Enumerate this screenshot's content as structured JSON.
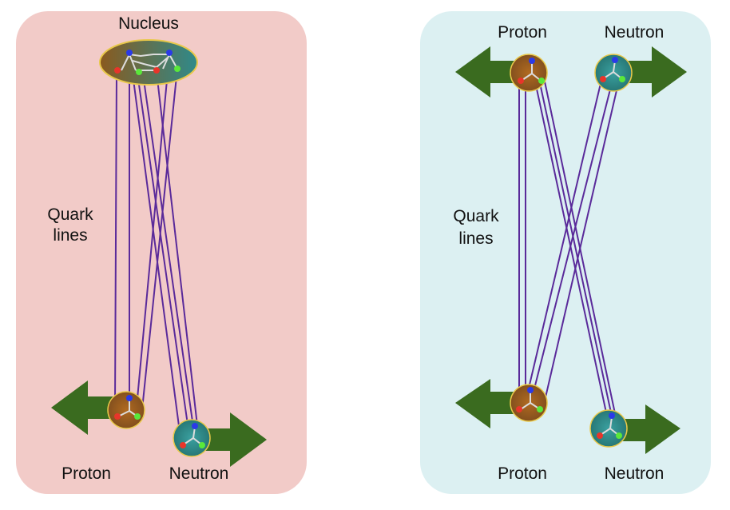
{
  "panels": {
    "left": {
      "background": "#f2cbc8",
      "labels": {
        "nucleus": "Nucleus",
        "quark_lines_1": "Quark",
        "quark_lines_2": "lines",
        "proton": "Proton",
        "neutron": "Neutron"
      }
    },
    "right": {
      "background": "#dcf0f2",
      "labels": {
        "proton_top": "Proton",
        "neutron_top": "Neutron",
        "quark_lines_1": "Quark",
        "quark_lines_2": "lines",
        "proton_bottom": "Proton",
        "neutron_bottom": "Neutron"
      }
    }
  },
  "colors": {
    "arrow": "#3a6b1f",
    "quark_line": "#5a2a9a",
    "proton_fill": "#9a5a1a",
    "neutron_fill": "#2f8a8a",
    "nucleus_fill": "#4a8a6a",
    "outline": "#e8c84a",
    "quark_red": "#e8352a",
    "quark_blue": "#2a3ae8",
    "quark_green": "#5ae83a"
  },
  "icons": [
    "arrow-left-icon",
    "arrow-right-icon",
    "proton-icon",
    "neutron-icon",
    "nucleus-icon"
  ]
}
